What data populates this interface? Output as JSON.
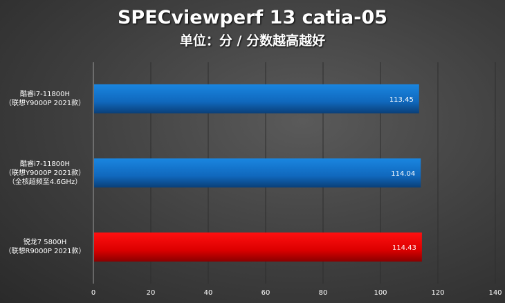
{
  "chart_data": {
    "type": "bar",
    "orientation": "horizontal",
    "title": "SPECviewperf 13 catia-05",
    "subtitle": "单位：分 / 分数越高越好",
    "categories": [
      [
        "酷睿i7-11800H",
        "（联想Y9000P 2021款）"
      ],
      [
        "酷睿i7-11800H",
        "（联想Y9000P 2021款）",
        "（全核超频至4.6GHz）"
      ],
      [
        "锐龙7 5800H",
        "（联想R9000P 2021款）"
      ]
    ],
    "values": [
      113.45,
      114.04,
      114.43
    ],
    "value_labels": [
      "113.45",
      "114.04",
      "114.43"
    ],
    "colors": [
      "#1470c8",
      "#1470c8",
      "#e00000"
    ],
    "xlim": [
      0,
      140
    ],
    "xticks": [
      "0",
      "20",
      "40",
      "60",
      "80",
      "100",
      "120",
      "140"
    ],
    "grid": true,
    "xlabel": "",
    "ylabel": ""
  }
}
